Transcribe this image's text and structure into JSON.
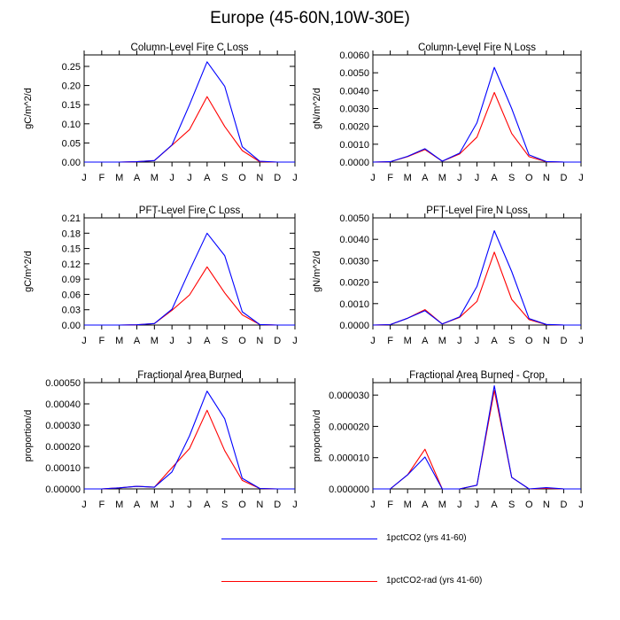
{
  "figure": {
    "title": "Europe (45-60N,10W-30E)"
  },
  "colors": {
    "series_1": "#0000ff",
    "series_2": "#ff0000",
    "axis": "#000000"
  },
  "legend": [
    {
      "label": "1pctCO2 (yrs 41-60)",
      "color": "#0000ff"
    },
    {
      "label": "1pctCO2-rad (yrs 41-60)",
      "color": "#ff0000"
    }
  ],
  "chart_data": [
    {
      "type": "line",
      "title": "Column-Level Fire C Loss",
      "ylabel": "gC/m^2/d",
      "x": [
        "J",
        "F",
        "M",
        "A",
        "M",
        "J",
        "J",
        "A",
        "S",
        "O",
        "N",
        "D",
        "J"
      ],
      "ylim": [
        0,
        0.28
      ],
      "yticks": [
        "0.00",
        "0.05",
        "0.10",
        "0.15",
        "0.20",
        "0.25"
      ],
      "ytick_values": [
        0,
        0.05,
        0.1,
        0.15,
        0.2,
        0.25
      ],
      "series": [
        {
          "name": "1pctCO2 (yrs 41-60)",
          "values": [
            0,
            0,
            0,
            0.001,
            0.004,
            0.045,
            0.15,
            0.262,
            0.198,
            0.04,
            0.002,
            0,
            0
          ]
        },
        {
          "name": "1pctCO2-rad (yrs 41-60)",
          "values": [
            0,
            0,
            0,
            0.001,
            0.004,
            0.044,
            0.085,
            0.171,
            0.093,
            0.03,
            0.001,
            0,
            0
          ]
        }
      ]
    },
    {
      "type": "line",
      "title": "Column-Level Fire N Loss",
      "ylabel": "gN/m^2/d",
      "x": [
        "J",
        "F",
        "M",
        "A",
        "M",
        "J",
        "J",
        "A",
        "S",
        "O",
        "N",
        "D",
        "J"
      ],
      "ylim": [
        0,
        0.006
      ],
      "yticks": [
        "0.0000",
        "0.0010",
        "0.0020",
        "0.0030",
        "0.0040",
        "0.0050",
        "0.0060"
      ],
      "ytick_values": [
        0,
        0.001,
        0.002,
        0.003,
        0.004,
        0.005,
        0.006
      ],
      "series": [
        {
          "name": "1pctCO2 (yrs 41-60)",
          "values": [
            0,
            2e-05,
            0.00032,
            0.00075,
            5e-05,
            0.0005,
            0.0022,
            0.0053,
            0.003,
            0.0004,
            3e-05,
            0,
            0
          ]
        },
        {
          "name": "1pctCO2-rad (yrs 41-60)",
          "values": [
            0,
            2e-05,
            0.0003,
            0.0007,
            5e-05,
            0.00045,
            0.0014,
            0.0039,
            0.0016,
            0.0003,
            2e-05,
            0,
            0
          ]
        }
      ]
    },
    {
      "type": "line",
      "title": "PFT-Level Fire C Loss",
      "ylabel": "gC/m^2/d",
      "x": [
        "J",
        "F",
        "M",
        "A",
        "M",
        "J",
        "J",
        "A",
        "S",
        "O",
        "N",
        "D",
        "J"
      ],
      "ylim": [
        0,
        0.21
      ],
      "yticks": [
        "0.00",
        "0.03",
        "0.06",
        "0.09",
        "0.12",
        "0.15",
        "0.18",
        "0.21"
      ],
      "ytick_values": [
        0,
        0.03,
        0.06,
        0.09,
        0.12,
        0.15,
        0.18,
        0.21
      ],
      "series": [
        {
          "name": "1pctCO2 (yrs 41-60)",
          "values": [
            0,
            0,
            0,
            0.0005,
            0.003,
            0.031,
            0.107,
            0.18,
            0.136,
            0.026,
            0.001,
            0,
            0
          ]
        },
        {
          "name": "1pctCO2-rad (yrs 41-60)",
          "values": [
            0,
            0,
            0,
            0.0005,
            0.003,
            0.029,
            0.059,
            0.114,
            0.063,
            0.02,
            0.001,
            0,
            0
          ]
        }
      ]
    },
    {
      "type": "line",
      "title": "PFT-Level Fire N Loss",
      "ylabel": "gN/m^2/d",
      "x": [
        "J",
        "F",
        "M",
        "A",
        "M",
        "J",
        "J",
        "A",
        "S",
        "O",
        "N",
        "D",
        "J"
      ],
      "ylim": [
        0,
        0.005
      ],
      "yticks": [
        "0.0000",
        "0.0010",
        "0.0020",
        "0.0030",
        "0.0040",
        "0.0050"
      ],
      "ytick_values": [
        0,
        0.001,
        0.002,
        0.003,
        0.004,
        0.005
      ],
      "series": [
        {
          "name": "1pctCO2 (yrs 41-60)",
          "values": [
            0,
            2e-05,
            0.00032,
            0.00067,
            5e-05,
            0.00038,
            0.0018,
            0.0044,
            0.0025,
            0.0003,
            3e-05,
            0,
            0
          ]
        },
        {
          "name": "1pctCO2-rad (yrs 41-60)",
          "values": [
            0,
            2e-05,
            0.00032,
            0.00072,
            5e-05,
            0.00036,
            0.0011,
            0.0034,
            0.0012,
            0.00025,
            2e-05,
            0,
            0
          ]
        }
      ]
    },
    {
      "type": "line",
      "title": "Fractional Area Burned",
      "ylabel": "proportion/d",
      "x": [
        "J",
        "F",
        "M",
        "A",
        "M",
        "J",
        "J",
        "A",
        "S",
        "O",
        "N",
        "D",
        "J"
      ],
      "ylim": [
        0,
        0.0005
      ],
      "yticks": [
        "0.00000",
        "0.00010",
        "0.00020",
        "0.00030",
        "0.00040",
        "0.00050"
      ],
      "ytick_values": [
        0,
        0.0001,
        0.0002,
        0.0003,
        0.0004,
        0.0005
      ],
      "series": [
        {
          "name": "1pctCO2 (yrs 41-60)",
          "values": [
            0,
            0,
            5e-06,
            1.2e-05,
            8e-06,
            8e-05,
            0.00025,
            0.00046,
            0.00033,
            5e-05,
            2e-06,
            0,
            0
          ]
        },
        {
          "name": "1pctCO2-rad (yrs 41-60)",
          "values": [
            0,
            0,
            5e-06,
            1.2e-05,
            8e-06,
            0.0001,
            0.00019,
            0.00037,
            0.00018,
            4e-05,
            2e-06,
            0,
            0
          ]
        }
      ]
    },
    {
      "type": "line",
      "title": "Fractional Area Burned - Crop",
      "ylabel": "proportion/d",
      "x": [
        "J",
        "F",
        "M",
        "A",
        "M",
        "J",
        "J",
        "A",
        "S",
        "O",
        "N",
        "D",
        "J"
      ],
      "ylim": [
        0,
        3.4e-05
      ],
      "yticks": [
        "0.000000",
        "0.000010",
        "0.000020",
        "0.000030"
      ],
      "ytick_values": [
        0,
        1e-05,
        2e-05,
        3e-05
      ],
      "series": [
        {
          "name": "1pctCO2 (yrs 41-60)",
          "values": [
            0,
            0,
            4.5e-06,
            1.02e-05,
            0,
            0,
            1.2e-06,
            3.3e-05,
            3.7e-06,
            0,
            4e-07,
            0,
            0
          ]
        },
        {
          "name": "1pctCO2-rad (yrs 41-60)",
          "values": [
            0,
            0,
            4.5e-06,
            1.27e-05,
            0,
            0,
            1.2e-06,
            3.15e-05,
            3.7e-06,
            0,
            2e-07,
            0,
            0
          ]
        }
      ]
    }
  ]
}
